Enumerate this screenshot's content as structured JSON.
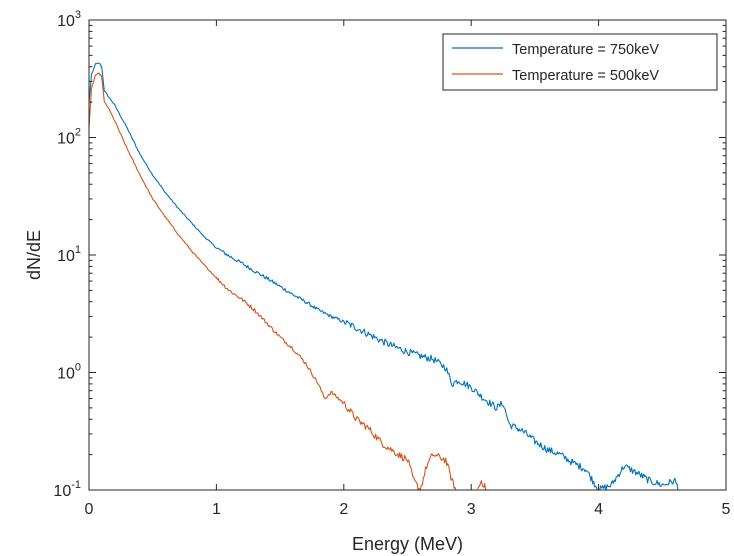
{
  "chart_data": {
    "type": "line",
    "title": "",
    "xlabel": "Energy (MeV)",
    "ylabel": "dN/dE",
    "xlim": [
      0,
      5
    ],
    "ylim": [
      0.1,
      1000
    ],
    "yscale": "log",
    "grid": false,
    "legend_position": "top-right",
    "x_ticks": [
      {
        "value": 0,
        "label": "0"
      },
      {
        "value": 1,
        "label": "1"
      },
      {
        "value": 2,
        "label": "2"
      },
      {
        "value": 3,
        "label": "3"
      },
      {
        "value": 4,
        "label": "4"
      },
      {
        "value": 5,
        "label": "5"
      }
    ],
    "y_ticks": [
      {
        "value": 0.1,
        "base": "10",
        "exp": "-1"
      },
      {
        "value": 1,
        "base": "10",
        "exp": "0"
      },
      {
        "value": 10,
        "base": "10",
        "exp": "1"
      },
      {
        "value": 100,
        "base": "10",
        "exp": "2"
      },
      {
        "value": 1000,
        "base": "10",
        "exp": "3"
      }
    ],
    "series": [
      {
        "name": "Temperature = 750keV",
        "color": "#0072bd",
        "points": [
          [
            0,
            200
          ],
          [
            0.02,
            340
          ],
          [
            0.05,
            420
          ],
          [
            0.08,
            430
          ],
          [
            0.1,
            400
          ],
          [
            0.12,
            250
          ],
          [
            0.15,
            225
          ],
          [
            0.2,
            190
          ],
          [
            0.3,
            120
          ],
          [
            0.4,
            72
          ],
          [
            0.5,
            48
          ],
          [
            0.6,
            34
          ],
          [
            0.7,
            25
          ],
          [
            0.8,
            19
          ],
          [
            0.9,
            14.5
          ],
          [
            1.0,
            11.5
          ],
          [
            1.1,
            9.8
          ],
          [
            1.2,
            8.5
          ],
          [
            1.3,
            7.3
          ],
          [
            1.4,
            6.3
          ],
          [
            1.5,
            5.4
          ],
          [
            1.6,
            4.6
          ],
          [
            1.7,
            4.0
          ],
          [
            1.8,
            3.4
          ],
          [
            1.9,
            3.0
          ],
          [
            2.0,
            2.7
          ],
          [
            2.1,
            2.4
          ],
          [
            2.2,
            2.1
          ],
          [
            2.3,
            1.85
          ],
          [
            2.4,
            1.65
          ],
          [
            2.5,
            1.5
          ],
          [
            2.6,
            1.38
          ],
          [
            2.7,
            1.3
          ],
          [
            2.8,
            1.1
          ],
          [
            2.85,
            0.8
          ],
          [
            2.9,
            0.86
          ],
          [
            3.0,
            0.75
          ],
          [
            3.1,
            0.6
          ],
          [
            3.2,
            0.5
          ],
          [
            3.25,
            0.55
          ],
          [
            3.3,
            0.36
          ],
          [
            3.4,
            0.32
          ],
          [
            3.5,
            0.26
          ],
          [
            3.6,
            0.22
          ],
          [
            3.7,
            0.2
          ],
          [
            3.8,
            0.17
          ],
          [
            3.9,
            0.15
          ],
          [
            4.0,
            0.1
          ],
          [
            4.1,
            0.11
          ],
          [
            4.2,
            0.16
          ],
          [
            4.3,
            0.14
          ],
          [
            4.4,
            0.12
          ],
          [
            4.5,
            0.11
          ],
          [
            4.6,
            0.12
          ],
          [
            4.63,
            0.1
          ]
        ]
      },
      {
        "name": "Temperature = 500keV",
        "color": "#d95319",
        "points": [
          [
            0,
            120
          ],
          [
            0.02,
            260
          ],
          [
            0.05,
            340
          ],
          [
            0.08,
            350
          ],
          [
            0.1,
            330
          ],
          [
            0.12,
            200
          ],
          [
            0.15,
            180
          ],
          [
            0.2,
            140
          ],
          [
            0.3,
            80
          ],
          [
            0.4,
            48
          ],
          [
            0.5,
            30
          ],
          [
            0.6,
            21
          ],
          [
            0.7,
            15
          ],
          [
            0.8,
            11
          ],
          [
            0.9,
            8.3
          ],
          [
            1.0,
            6.4
          ],
          [
            1.1,
            5.0
          ],
          [
            1.2,
            4.2
          ],
          [
            1.3,
            3.4
          ],
          [
            1.4,
            2.6
          ],
          [
            1.5,
            2.0
          ],
          [
            1.6,
            1.6
          ],
          [
            1.7,
            1.2
          ],
          [
            1.8,
            0.8
          ],
          [
            1.85,
            0.6
          ],
          [
            1.9,
            0.68
          ],
          [
            2.0,
            0.55
          ],
          [
            2.1,
            0.4
          ],
          [
            2.2,
            0.33
          ],
          [
            2.3,
            0.25
          ],
          [
            2.4,
            0.21
          ],
          [
            2.5,
            0.18
          ],
          [
            2.55,
            0.12
          ],
          [
            2.6,
            0.1
          ],
          [
            2.65,
            0.16
          ],
          [
            2.7,
            0.2
          ],
          [
            2.75,
            0.19
          ],
          [
            2.8,
            0.18
          ],
          [
            2.85,
            0.12
          ],
          [
            2.88,
            0.1
          ]
        ]
      },
      {
        "name": "",
        "color": "#d95319",
        "points": [
          [
            3.05,
            0.1
          ],
          [
            3.08,
            0.12
          ],
          [
            3.1,
            0.11
          ],
          [
            3.12,
            0.1
          ]
        ]
      }
    ]
  }
}
